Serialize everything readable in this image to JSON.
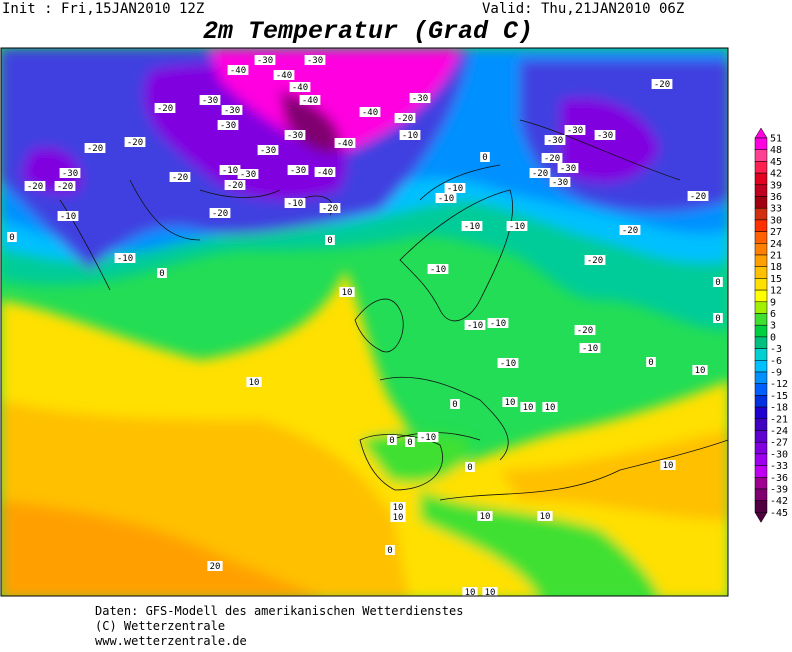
{
  "header": {
    "init": "Init : Fri,15JAN2010 12Z",
    "valid": "Valid: Thu,21JAN2010 06Z",
    "title": "2m Temperatur (Grad C)"
  },
  "colorbar": {
    "labels": [
      51,
      48,
      45,
      42,
      39,
      36,
      33,
      30,
      27,
      24,
      21,
      18,
      15,
      12,
      9,
      6,
      3,
      0,
      -3,
      -6,
      -9,
      -12,
      -15,
      -18,
      -21,
      -24,
      -27,
      -30,
      -33,
      -36,
      -39,
      -42,
      -45
    ],
    "colors": [
      "#ff00e0",
      "#ff4090",
      "#ff2050",
      "#e00020",
      "#c00020",
      "#a00010",
      "#d03010",
      "#ff3000",
      "#ff6000",
      "#ff8000",
      "#ffa000",
      "#ffc000",
      "#ffe000",
      "#ffff00",
      "#a0f000",
      "#40e030",
      "#00d040",
      "#00c080",
      "#00d0d0",
      "#00c0ff",
      "#0090ff",
      "#0060ff",
      "#0030e0",
      "#2000d0",
      "#4000c0",
      "#6000d0",
      "#8000e0",
      "#a000f0",
      "#c000f0",
      "#a00090",
      "#800070",
      "#500040"
    ]
  },
  "contour_labels": [
    -30,
    -40,
    -30,
    -40,
    -40,
    -30,
    -30,
    -30,
    -20,
    -40,
    -40,
    -30,
    -20,
    -10,
    -30,
    -40,
    -20,
    -20,
    -30,
    -30,
    -20,
    -20,
    -20,
    -10,
    -30,
    -30,
    -40,
    -20,
    -20,
    -10,
    -20,
    -10,
    0,
    0,
    -10,
    10,
    10,
    0,
    -10,
    -10,
    -10,
    -10,
    -10,
    -20,
    -30,
    -30,
    -30,
    -20,
    -30,
    -20,
    -30,
    -20,
    -20,
    -20,
    -10,
    -10,
    -10,
    -20,
    -10,
    0,
    10,
    0,
    10,
    10,
    10,
    0,
    -10,
    0,
    0,
    0,
    10,
    10,
    10,
    10,
    10,
    0,
    20,
    10,
    10,
    0,
    0
  ],
  "footer": [
    "Daten: GFS-Modell des amerikanischen Wetterdienstes",
    "(C) Wetterzentrale",
    "www.wetterzentrale.de"
  ]
}
